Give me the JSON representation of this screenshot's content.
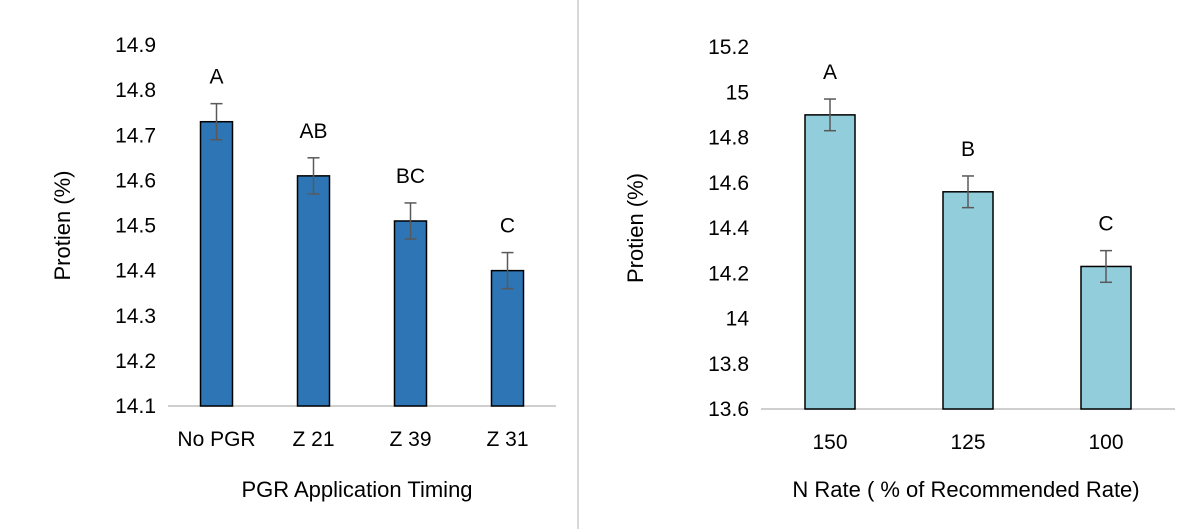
{
  "chart_data": [
    {
      "type": "bar",
      "title": "",
      "xlabel": "PGR Application Timing",
      "ylabel": "Protien (%)",
      "categories": [
        "No PGR",
        "Z 21",
        "Z 39",
        "Z 31"
      ],
      "values": [
        14.73,
        14.61,
        14.51,
        14.4
      ],
      "error": [
        0.04,
        0.04,
        0.04,
        0.04
      ],
      "significance_labels": [
        "A",
        "AB",
        "BC",
        "C"
      ],
      "ylim": [
        14.1,
        14.9
      ],
      "yticks": [
        "14.1",
        "14.2",
        "14.3",
        "14.4",
        "14.5",
        "14.6",
        "14.7",
        "14.8",
        "14.9"
      ],
      "bar_color": "#2e75b6",
      "grid": false,
      "legend": "none"
    },
    {
      "type": "bar",
      "title": "",
      "xlabel": "N Rate ( % of Recommended Rate)",
      "ylabel": "Protien (%)",
      "categories": [
        "150",
        "125",
        "100"
      ],
      "values": [
        14.9,
        14.56,
        14.23
      ],
      "error": [
        0.07,
        0.07,
        0.07
      ],
      "significance_labels": [
        "A",
        "B",
        "C"
      ],
      "ylim": [
        13.6,
        15.2
      ],
      "yticks": [
        "13.6",
        "13.8",
        "14",
        "14.2",
        "14.4",
        "14.6",
        "14.8",
        "15",
        "15.2"
      ],
      "bar_color": "#92cddc",
      "grid": false,
      "legend": "none"
    }
  ]
}
